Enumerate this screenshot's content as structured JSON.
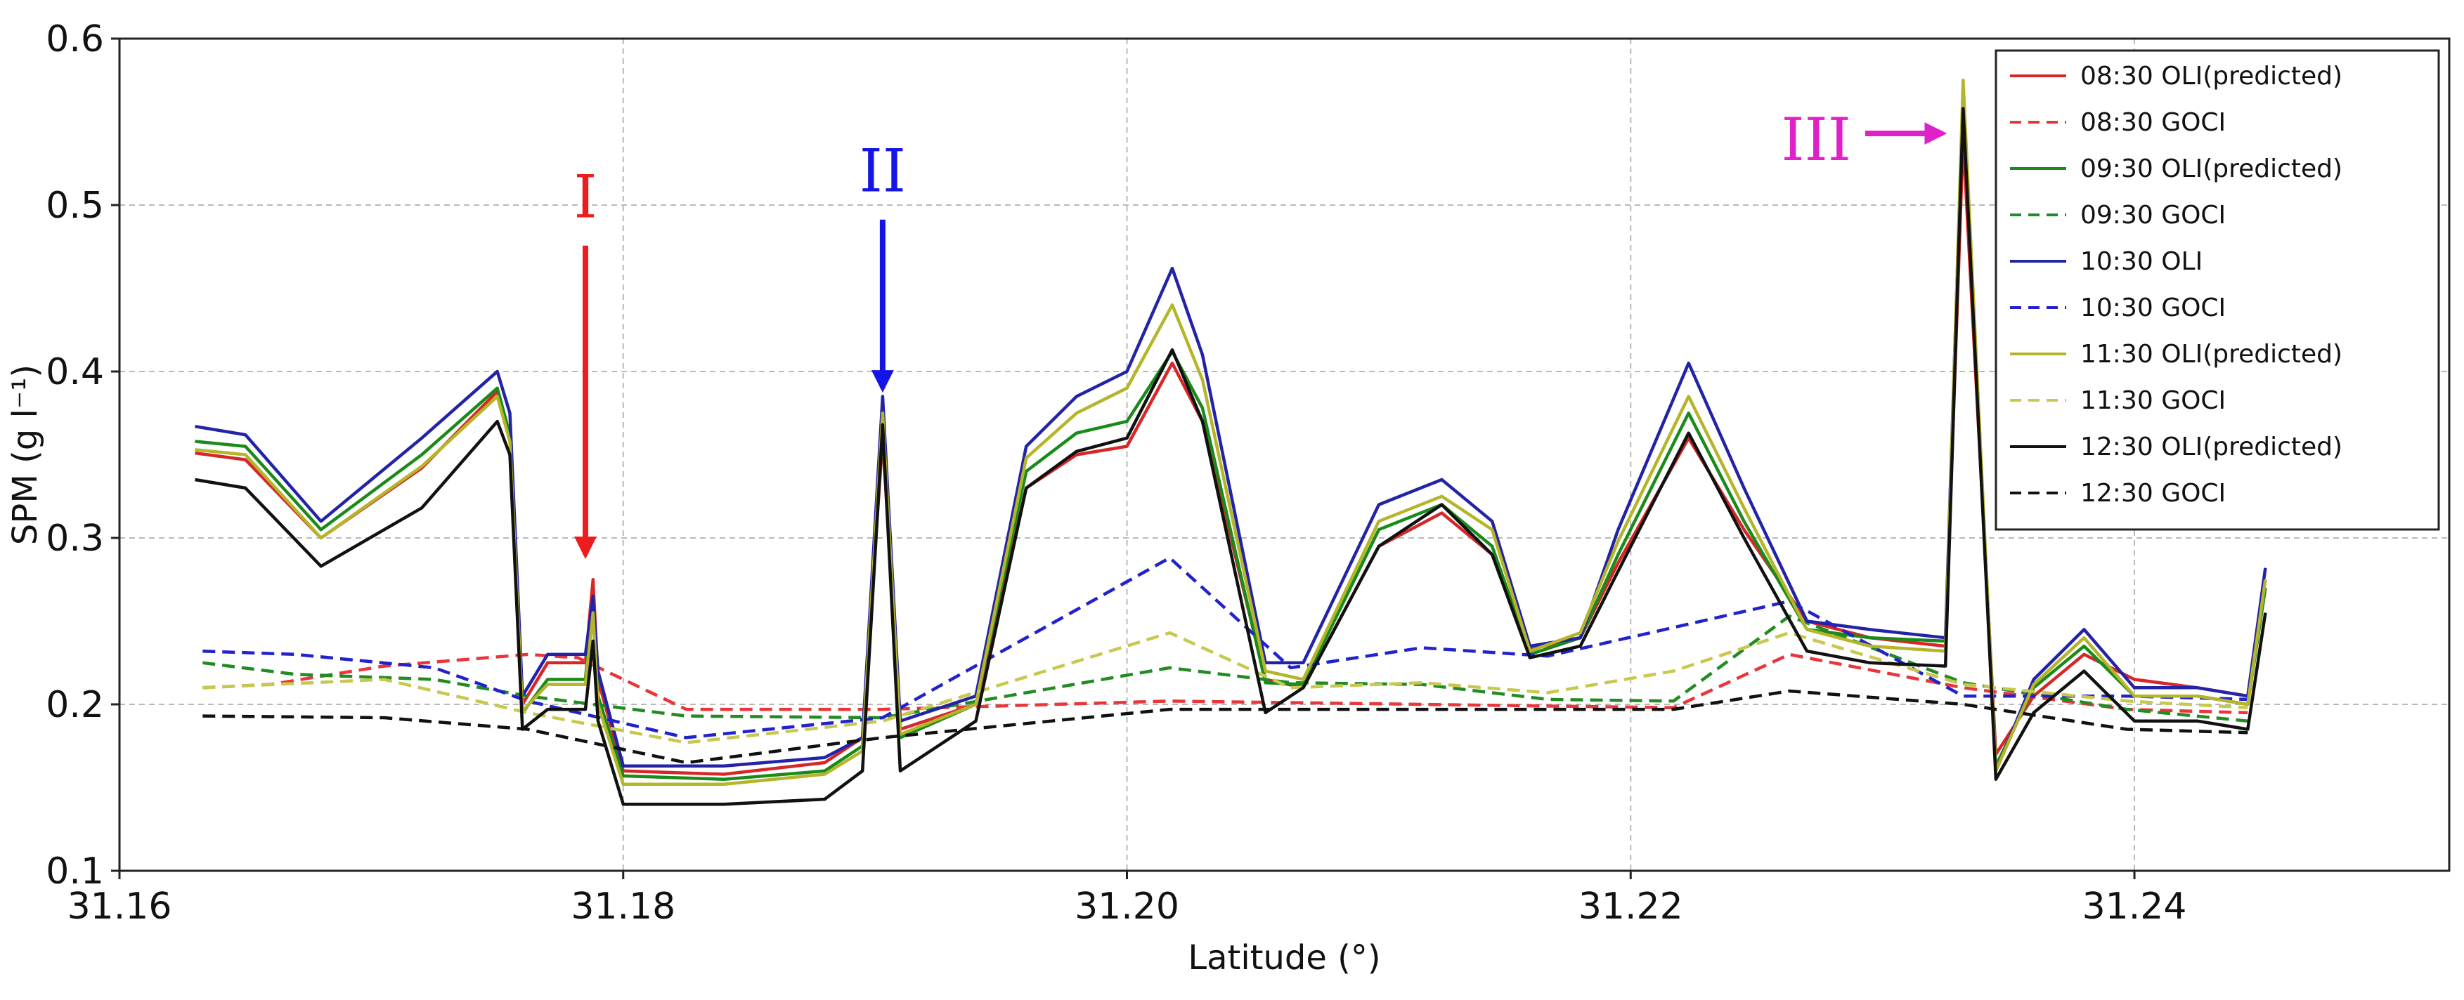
{
  "chart_data": {
    "type": "line",
    "title": "",
    "xlabel": "Latitude (°)",
    "ylabel": "SPM (g l⁻¹)",
    "xlim": [
      31.16,
      31.2525
    ],
    "ylim": [
      0.1,
      0.6
    ],
    "xticks": [
      "31.16",
      "31.18",
      "31.20",
      "31.22",
      "31.24"
    ],
    "yticks": [
      "0.1",
      "0.2",
      "0.3",
      "0.4",
      "0.5",
      "0.6"
    ],
    "grid": true,
    "legend_position": "top-right",
    "series": [
      {
        "name": "08:30 OLI(predicted)",
        "color": "#d62728",
        "dash": "solid",
        "x": [
          31.163,
          31.165,
          31.168,
          31.172,
          31.175,
          31.1755,
          31.176,
          31.177,
          31.1785,
          31.1788,
          31.179,
          31.18,
          31.184,
          31.188,
          31.1895,
          31.1903,
          31.191,
          31.194,
          31.196,
          31.198,
          31.2,
          31.2018,
          31.203,
          31.2055,
          31.207,
          31.21,
          31.2125,
          31.2145,
          31.216,
          31.218,
          31.2195,
          31.2223,
          31.2245,
          31.227,
          31.2295,
          31.2325,
          31.2332,
          31.2345,
          31.236,
          31.238,
          31.24,
          31.2425,
          31.2445,
          31.2452
        ],
        "y": [
          0.351,
          0.347,
          0.3,
          0.342,
          0.388,
          0.36,
          0.2,
          0.225,
          0.225,
          0.275,
          0.215,
          0.16,
          0.158,
          0.165,
          0.18,
          0.36,
          0.185,
          0.2,
          0.33,
          0.35,
          0.355,
          0.405,
          0.37,
          0.215,
          0.21,
          0.295,
          0.315,
          0.29,
          0.233,
          0.24,
          0.285,
          0.36,
          0.305,
          0.25,
          0.24,
          0.235,
          0.54,
          0.17,
          0.205,
          0.23,
          0.215,
          0.21,
          0.205,
          0.27
        ]
      },
      {
        "name": "08:30 GOCI",
        "color": "#e8363a",
        "dash": "dashed",
        "x": [
          31.1633,
          31.166,
          31.1705,
          31.1762,
          31.1782,
          31.1825,
          31.1903,
          31.2017,
          31.2217,
          31.2263,
          31.2332,
          31.2397,
          31.2445
        ],
        "y": [
          0.21,
          0.212,
          0.223,
          0.23,
          0.228,
          0.197,
          0.197,
          0.202,
          0.198,
          0.23,
          0.21,
          0.197,
          0.195
        ]
      },
      {
        "name": "09:30 OLI(predicted)",
        "color": "#1a8a1a",
        "dash": "solid",
        "x": [
          31.163,
          31.165,
          31.168,
          31.172,
          31.175,
          31.1755,
          31.176,
          31.177,
          31.1785,
          31.1788,
          31.179,
          31.18,
          31.184,
          31.188,
          31.1895,
          31.1903,
          31.191,
          31.194,
          31.196,
          31.198,
          31.2,
          31.2018,
          31.203,
          31.2055,
          31.207,
          31.21,
          31.2125,
          31.2145,
          31.216,
          31.218,
          31.2195,
          31.2223,
          31.2245,
          31.227,
          31.2295,
          31.2325,
          31.2332,
          31.2345,
          31.236,
          31.238,
          31.24,
          31.2425,
          31.2445,
          31.2452
        ],
        "y": [
          0.358,
          0.355,
          0.305,
          0.35,
          0.39,
          0.362,
          0.195,
          0.215,
          0.215,
          0.265,
          0.205,
          0.157,
          0.155,
          0.16,
          0.175,
          0.365,
          0.18,
          0.2,
          0.34,
          0.363,
          0.37,
          0.412,
          0.378,
          0.213,
          0.212,
          0.305,
          0.32,
          0.295,
          0.23,
          0.24,
          0.29,
          0.375,
          0.31,
          0.245,
          0.24,
          0.238,
          0.56,
          0.163,
          0.21,
          0.235,
          0.205,
          0.205,
          0.2,
          0.27
        ]
      },
      {
        "name": "09:30 GOCI",
        "color": "#228b22",
        "dash": "dashed",
        "x": [
          31.1633,
          31.167,
          31.1725,
          31.1762,
          31.1825,
          31.1903,
          31.2017,
          31.2065,
          31.2117,
          31.2167,
          31.2217,
          31.2263,
          31.2332,
          31.2397,
          31.2445
        ],
        "y": [
          0.225,
          0.218,
          0.215,
          0.205,
          0.193,
          0.192,
          0.222,
          0.213,
          0.212,
          0.203,
          0.202,
          0.253,
          0.213,
          0.197,
          0.19
        ]
      },
      {
        "name": "10:30 OLI",
        "color": "#2323a8",
        "dash": "solid",
        "x": [
          31.163,
          31.165,
          31.168,
          31.172,
          31.175,
          31.1755,
          31.176,
          31.177,
          31.1785,
          31.1788,
          31.179,
          31.18,
          31.184,
          31.188,
          31.1895,
          31.1903,
          31.191,
          31.194,
          31.196,
          31.198,
          31.2,
          31.2018,
          31.203,
          31.2055,
          31.207,
          31.21,
          31.2125,
          31.2145,
          31.216,
          31.218,
          31.2195,
          31.2223,
          31.2245,
          31.227,
          31.2295,
          31.2325,
          31.2332,
          31.2345,
          31.236,
          31.238,
          31.24,
          31.2425,
          31.2445,
          31.2452
        ],
        "y": [
          0.367,
          0.362,
          0.31,
          0.36,
          0.4,
          0.375,
          0.205,
          0.23,
          0.23,
          0.265,
          0.22,
          0.163,
          0.163,
          0.168,
          0.18,
          0.385,
          0.19,
          0.205,
          0.355,
          0.385,
          0.4,
          0.462,
          0.41,
          0.225,
          0.225,
          0.32,
          0.335,
          0.31,
          0.235,
          0.24,
          0.305,
          0.405,
          0.33,
          0.25,
          0.245,
          0.24,
          0.57,
          0.16,
          0.215,
          0.245,
          0.21,
          0.21,
          0.205,
          0.282
        ]
      },
      {
        "name": "10:30 GOCI",
        "color": "#2222cc",
        "dash": "dashed",
        "x": [
          31.1633,
          31.167,
          31.1725,
          31.1762,
          31.1825,
          31.1903,
          31.2017,
          31.2065,
          31.2117,
          31.2167,
          31.2263,
          31.2332,
          31.2397,
          31.2445
        ],
        "y": [
          0.232,
          0.23,
          0.222,
          0.202,
          0.18,
          0.192,
          0.288,
          0.222,
          0.234,
          0.229,
          0.262,
          0.205,
          0.205,
          0.203
        ]
      },
      {
        "name": "11:30 OLI(predicted)",
        "color": "#b5b52a",
        "dash": "solid",
        "x": [
          31.163,
          31.165,
          31.168,
          31.172,
          31.175,
          31.1755,
          31.176,
          31.177,
          31.1785,
          31.1788,
          31.179,
          31.18,
          31.184,
          31.188,
          31.1895,
          31.1903,
          31.191,
          31.194,
          31.196,
          31.198,
          31.2,
          31.2018,
          31.203,
          31.2055,
          31.207,
          31.21,
          31.2125,
          31.2145,
          31.216,
          31.218,
          31.2195,
          31.2223,
          31.2245,
          31.227,
          31.2295,
          31.2325,
          31.2332,
          31.2345,
          31.236,
          31.238,
          31.24,
          31.2425,
          31.2445,
          31.2452
        ],
        "y": [
          0.353,
          0.35,
          0.3,
          0.343,
          0.385,
          0.358,
          0.196,
          0.212,
          0.212,
          0.255,
          0.2,
          0.152,
          0.152,
          0.158,
          0.172,
          0.375,
          0.182,
          0.2,
          0.348,
          0.375,
          0.39,
          0.44,
          0.395,
          0.22,
          0.215,
          0.31,
          0.325,
          0.305,
          0.232,
          0.243,
          0.298,
          0.385,
          0.318,
          0.245,
          0.235,
          0.232,
          0.575,
          0.16,
          0.212,
          0.24,
          0.205,
          0.205,
          0.2,
          0.275
        ]
      },
      {
        "name": "11:30 GOCI",
        "color": "#c8c850",
        "dash": "dashed",
        "x": [
          31.1633,
          31.1705,
          31.1762,
          31.1825,
          31.1903,
          31.2017,
          31.2065,
          31.2117,
          31.2167,
          31.2217,
          31.2263,
          31.2332,
          31.2397,
          31.2445
        ],
        "y": [
          0.21,
          0.215,
          0.195,
          0.177,
          0.19,
          0.243,
          0.21,
          0.213,
          0.207,
          0.22,
          0.243,
          0.212,
          0.202,
          0.198
        ]
      },
      {
        "name": "12:30 OLI(predicted)",
        "color": "#111111",
        "dash": "solid",
        "x": [
          31.163,
          31.165,
          31.168,
          31.172,
          31.175,
          31.1755,
          31.176,
          31.177,
          31.1785,
          31.1788,
          31.179,
          31.18,
          31.184,
          31.188,
          31.1895,
          31.1903,
          31.191,
          31.194,
          31.196,
          31.198,
          31.2,
          31.2018,
          31.203,
          31.2055,
          31.207,
          31.21,
          31.2125,
          31.2145,
          31.216,
          31.218,
          31.2195,
          31.2223,
          31.2245,
          31.227,
          31.2295,
          31.2325,
          31.2332,
          31.2345,
          31.236,
          31.238,
          31.24,
          31.2425,
          31.2445,
          31.2452
        ],
        "y": [
          0.335,
          0.33,
          0.283,
          0.318,
          0.37,
          0.35,
          0.185,
          0.197,
          0.197,
          0.238,
          0.19,
          0.14,
          0.14,
          0.143,
          0.16,
          0.368,
          0.16,
          0.19,
          0.33,
          0.352,
          0.36,
          0.413,
          0.37,
          0.195,
          0.21,
          0.295,
          0.32,
          0.29,
          0.228,
          0.235,
          0.28,
          0.363,
          0.3,
          0.232,
          0.225,
          0.223,
          0.558,
          0.155,
          0.195,
          0.22,
          0.19,
          0.19,
          0.185,
          0.255
        ]
      },
      {
        "name": "12:30 GOCI",
        "color": "#111111",
        "dash": "dashed",
        "x": [
          31.1633,
          31.1705,
          31.1762,
          31.1825,
          31.1903,
          31.2017,
          31.2217,
          31.2263,
          31.2332,
          31.2397,
          31.2445
        ],
        "y": [
          0.193,
          0.192,
          0.185,
          0.165,
          0.18,
          0.197,
          0.197,
          0.208,
          0.2,
          0.185,
          0.183
        ]
      }
    ],
    "annotations": [
      {
        "label": "I",
        "color": "#ee1c1c",
        "direction": "down",
        "x": 31.1785,
        "y": 0.29
      },
      {
        "label": "II",
        "color": "#1414e6",
        "direction": "down",
        "x": 31.1903,
        "y": 0.39
      },
      {
        "label": "III",
        "color": "#e020c8",
        "direction": "right",
        "x": 31.2328,
        "y": 0.527
      }
    ]
  }
}
